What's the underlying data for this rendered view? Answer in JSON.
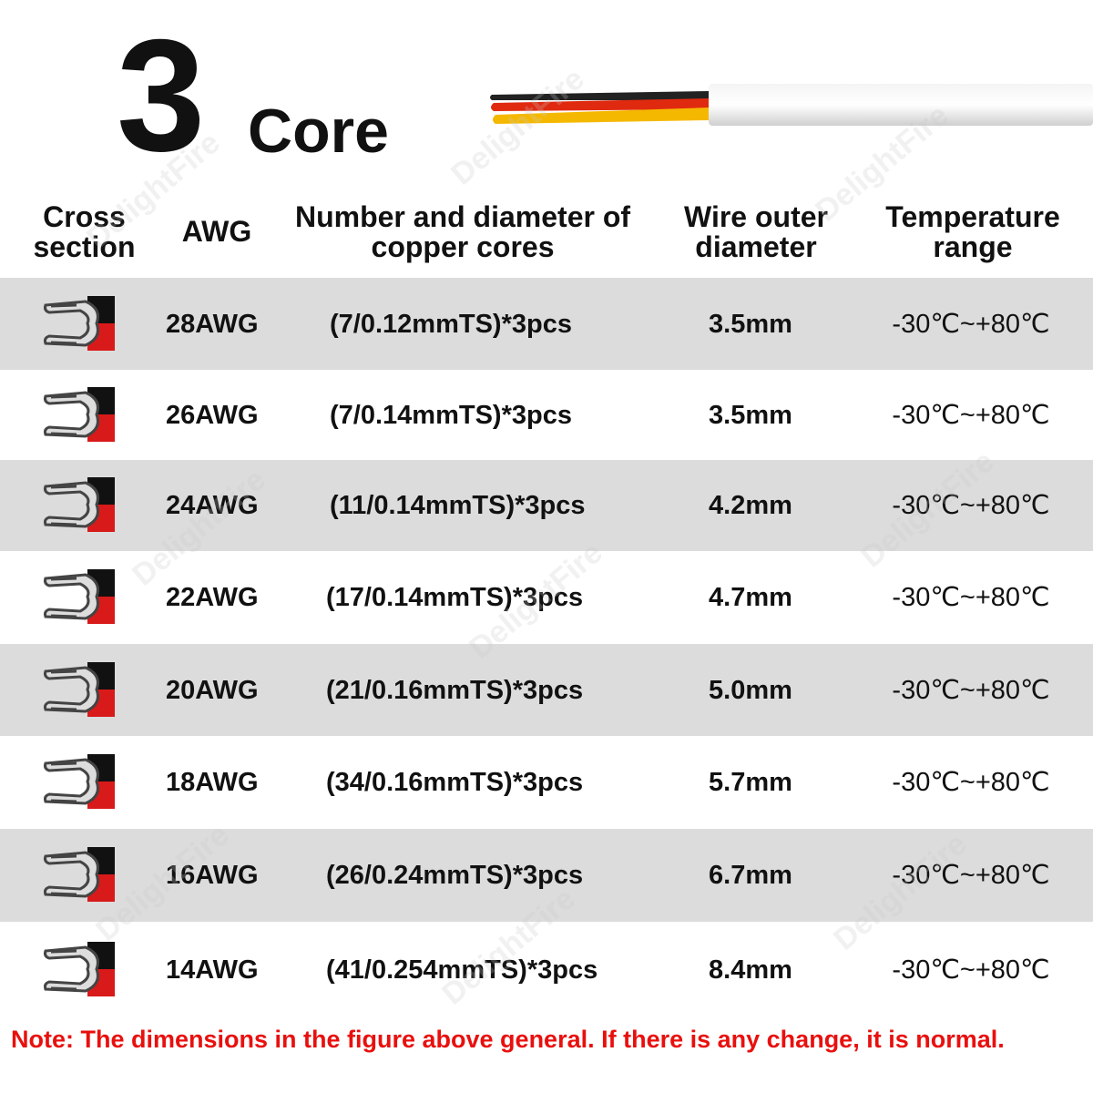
{
  "title": {
    "number": "3",
    "word": "Core"
  },
  "headers": [
    "Cross section",
    "AWG",
    "Number and diameter of copper cores",
    "Wire outer diameter",
    "Temperature range"
  ],
  "rows": [
    [
      "28AWG",
      "(7/0.12mmTS)*3pcs",
      "3.5mm",
      "-30℃~+80℃"
    ],
    [
      "26AWG",
      "(7/0.14mmTS)*3pcs",
      "3.5mm",
      "-30℃~+80℃"
    ],
    [
      "24AWG",
      "(11/0.14mmTS)*3pcs",
      "4.2mm",
      "-30℃~+80℃"
    ],
    [
      "22AWG",
      "(17/0.14mmTS)*3pcs",
      "4.7mm",
      "-30℃~+80℃"
    ],
    [
      "20AWG",
      "(21/0.16mmTS)*3pcs",
      "5.0mm",
      "-30℃~+80℃"
    ],
    [
      "18AWG",
      "(34/0.16mmTS)*3pcs",
      "5.7mm",
      "-30℃~+80℃"
    ],
    [
      "16AWG",
      "(26/0.24mmTS)*3pcs",
      "6.7mm",
      "-30℃~+80℃"
    ],
    [
      "14AWG",
      "(41/0.254mmTS)*3pcs",
      "8.4mm",
      "-30℃~+80℃"
    ]
  ],
  "note": "Note: The dimensions in the figure above general. If there is any change, it is normal.",
  "watermark": "DelightFire"
}
